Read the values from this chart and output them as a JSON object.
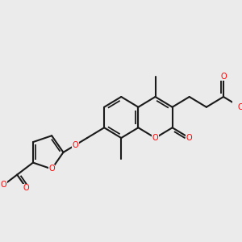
{
  "background_color": "#ebebeb",
  "bond_color": "#1a1a1a",
  "oxygen_color": "#ff0000",
  "line_width": 1.5,
  "figsize": [
    3.0,
    3.0
  ],
  "dpi": 100,
  "xlim": [
    0,
    10
  ],
  "ylim": [
    0,
    10
  ]
}
